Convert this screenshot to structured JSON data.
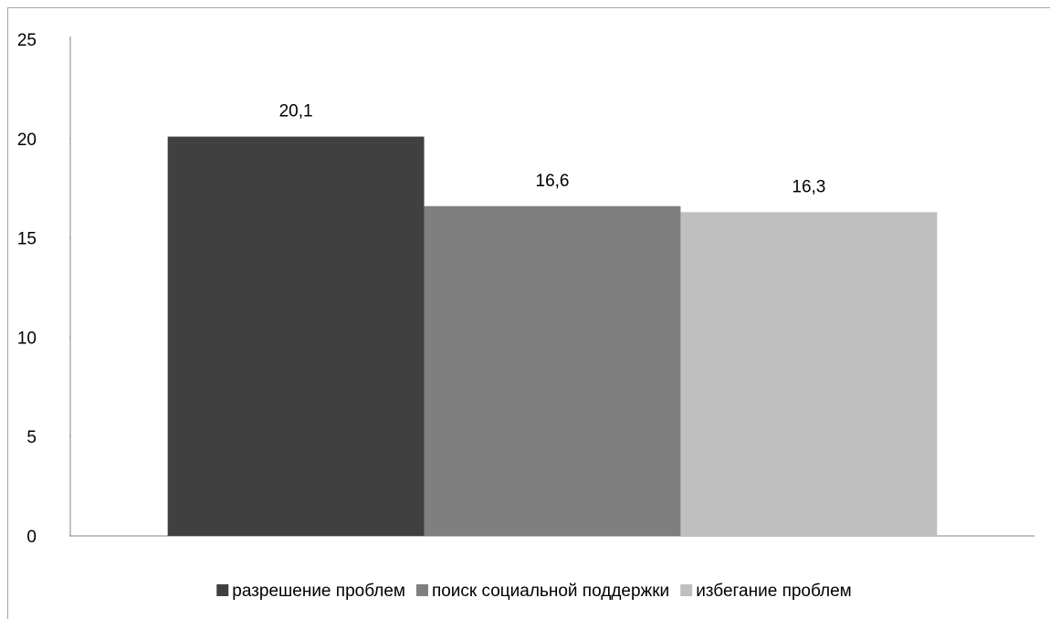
{
  "chart_data": {
    "type": "bar",
    "categories": [
      null
    ],
    "series": [
      {
        "name": "разрешение проблем",
        "color": "#404040",
        "values": [
          20.1
        ],
        "value_labels": [
          "20,1"
        ]
      },
      {
        "name": "поиск социальной поддержки",
        "color": "#7f7f7f",
        "values": [
          16.6
        ],
        "value_labels": [
          "16,6"
        ]
      },
      {
        "name": "избегание проблем",
        "color": "#bfbfbf",
        "values": [
          16.3
        ],
        "value_labels": [
          "16,3"
        ]
      }
    ],
    "ylim": [
      0,
      25
    ],
    "yticks": [
      0,
      5,
      10,
      15,
      20,
      25
    ],
    "grid": false,
    "legend": "bottom"
  }
}
